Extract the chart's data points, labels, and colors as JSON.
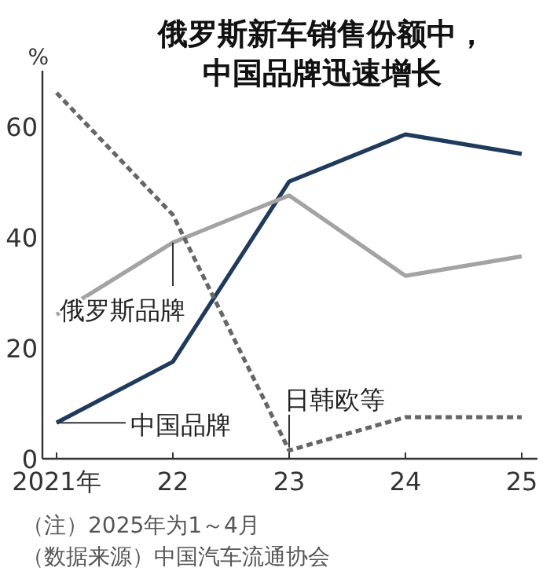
{
  "chart_data": {
    "type": "line",
    "title": "俄罗斯新车销售份额中，中国品牌迅速增长",
    "ylabel": "%",
    "categories": [
      "2021年",
      "22",
      "23",
      "24",
      "25"
    ],
    "series": [
      {
        "name": "中国品牌",
        "color": "#1f3a5c",
        "values": [
          6.5,
          17.5,
          50,
          58.5,
          55
        ],
        "line_style": "solid"
      },
      {
        "name": "俄罗斯品牌",
        "color": "#a3a3a3",
        "values": [
          26,
          39,
          47.5,
          33,
          36.5
        ],
        "line_style": "solid"
      },
      {
        "name": "日韩欧等",
        "color": "#666666",
        "values": [
          66,
          44,
          1.5,
          7.5,
          7.5
        ],
        "line_style": "dotted"
      }
    ],
    "ylim": [
      0,
      70
    ],
    "yticks": [
      0,
      20,
      40,
      60
    ],
    "grid": false,
    "legend": false,
    "marker": "none",
    "annotations": [
      "（注）2025年为1～4月",
      "（数据来源）中国汽车流通协会"
    ]
  }
}
